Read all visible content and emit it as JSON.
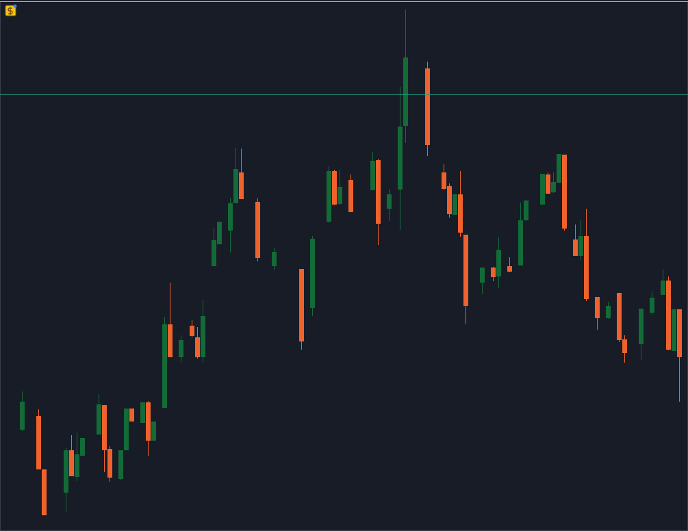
{
  "chart_data": {
    "type": "candlestick",
    "up_color": "#136b38",
    "down_color": "#f0622d",
    "price_line_color": "#1f9e86",
    "xlim": [
      -4,
      121.625
    ],
    "ylim": [
      0,
      776
    ],
    "price_line": 638,
    "x": [
      0,
      3,
      4,
      8,
      9,
      10,
      11,
      14,
      15,
      16,
      18,
      19,
      20,
      22,
      23,
      24,
      26,
      27,
      29,
      31,
      32,
      33,
      35,
      36,
      38,
      39,
      40,
      43,
      46,
      51,
      53,
      56,
      57,
      58,
      60,
      64,
      65,
      67,
      69,
      70,
      74,
      77,
      78,
      79,
      80,
      81,
      84,
      86,
      87,
      89,
      91,
      92,
      95,
      96,
      97,
      98,
      99,
      101,
      102,
      103,
      105,
      107,
      109,
      110,
      113,
      115,
      117,
      118,
      119,
      120
    ],
    "open": [
      148,
      168,
      90,
      56,
      118,
      79,
      110,
      141,
      184,
      120,
      76,
      118,
      179,
      158,
      188,
      132,
      180,
      302,
      254,
      300,
      283,
      254,
      387,
      419,
      439,
      479,
      524,
      481,
      387,
      383,
      326,
      452,
      526,
      478,
      513,
      498,
      542,
      471,
      499,
      592,
      676,
      524,
      504,
      462,
      492,
      433,
      363,
      385,
      372,
      387,
      388,
      454,
      477,
      521,
      495,
      509,
      550,
      426,
      402,
      431,
      342,
      311,
      348,
      280,
      273,
      319,
      345,
      366,
      263,
      324
    ],
    "high": [
      204,
      178,
      90,
      121,
      140,
      144,
      136,
      200,
      184,
      124,
      118,
      179,
      179,
      188,
      190,
      160,
      313,
      363,
      286,
      308,
      298,
      338,
      443,
      452,
      487,
      560,
      559,
      486,
      414,
      383,
      431,
      533,
      528,
      528,
      521,
      554,
      544,
      500,
      649,
      762,
      686,
      536,
      508,
      492,
      526,
      433,
      385,
      386,
      430,
      400,
      480,
      483,
      522,
      524,
      524,
      551,
      550,
      448,
      454,
      471,
      342,
      335,
      348,
      286,
      325,
      350,
      383,
      372,
      324,
      324
    ],
    "low": [
      146,
      90,
      23,
      28,
      80,
      73,
      110,
      141,
      86,
      72,
      74,
      118,
      160,
      158,
      110,
      132,
      180,
      254,
      246,
      283,
      252,
      246,
      387,
      419,
      407,
      479,
      485,
      394,
      381,
      265,
      314,
      450,
      476,
      476,
      466,
      498,
      418,
      453,
      440,
      567,
      548,
      498,
      458,
      462,
      430,
      303,
      346,
      365,
      355,
      378,
      388,
      454,
      477,
      492,
      494,
      508,
      439,
      402,
      396,
      336,
      294,
      310,
      276,
      246,
      250,
      316,
      345,
      264,
      263,
      189
    ],
    "close": [
      189,
      90,
      23,
      118,
      80,
      112,
      136,
      185,
      118,
      78,
      118,
      179,
      160,
      188,
      132,
      160,
      302,
      254,
      279,
      285,
      254,
      314,
      425,
      452,
      479,
      529,
      485,
      399,
      408,
      277,
      427,
      526,
      477,
      503,
      466,
      541,
      449,
      492,
      591,
      692,
      564,
      500,
      463,
      492,
      436,
      329,
      385,
      371,
      411,
      379,
      454,
      483,
      522,
      493,
      510,
      551,
      442,
      402,
      431,
      339,
      311,
      329,
      279,
      260,
      325,
      341,
      366,
      265,
      324,
      254
    ]
  }
}
